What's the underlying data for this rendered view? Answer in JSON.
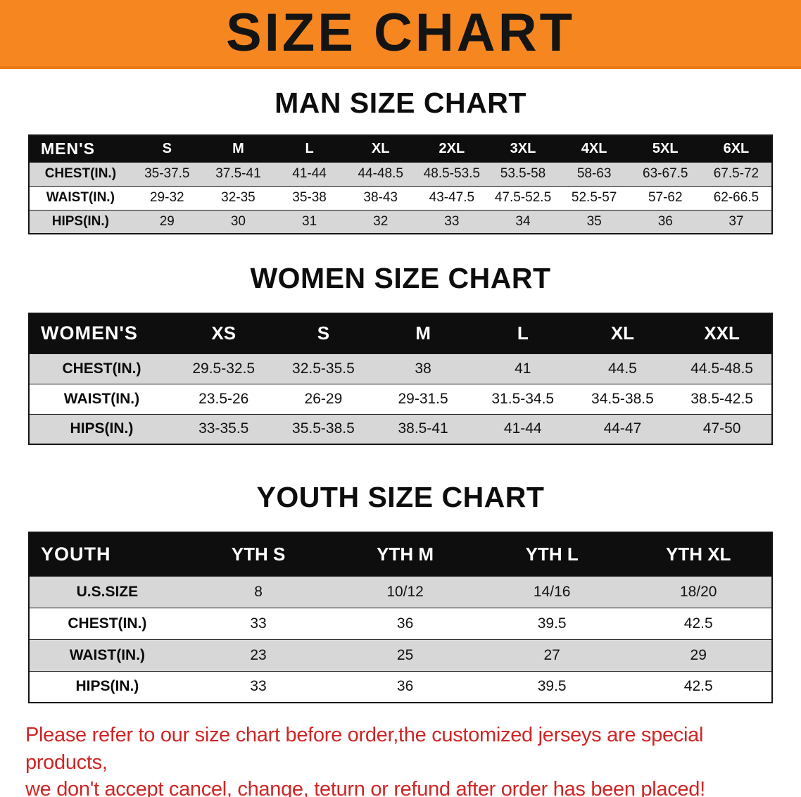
{
  "banner": {
    "title": "SIZE CHART",
    "bg_color": "#f6861f",
    "text_color": "#141414"
  },
  "sections": [
    {
      "id": "men",
      "heading": "MAN SIZE CHART",
      "table": {
        "corner_label": "MEN'S",
        "columns": [
          "S",
          "M",
          "L",
          "XL",
          "2XL",
          "3XL",
          "4XL",
          "5XL",
          "6XL"
        ],
        "rows": [
          {
            "label": "CHEST(IN.)",
            "values": [
              "35-37.5",
              "37.5-41",
              "41-44",
              "44-48.5",
              "48.5-53.5",
              "53.5-58",
              "58-63",
              "63-67.5",
              "67.5-72"
            ]
          },
          {
            "label": "WAIST(IN.)",
            "values": [
              "29-32",
              "32-35",
              "35-38",
              "38-43",
              "43-47.5",
              "47.5-52.5",
              "52.5-57",
              "57-62",
              "62-66.5"
            ]
          },
          {
            "label": "HIPS(IN.)",
            "values": [
              "29",
              "30",
              "31",
              "32",
              "33",
              "34",
              "35",
              "36",
              "37"
            ]
          }
        ]
      }
    },
    {
      "id": "women",
      "heading": "WOMEN SIZE CHART",
      "table": {
        "corner_label": "WOMEN'S",
        "columns": [
          "XS",
          "S",
          "M",
          "L",
          "XL",
          "XXL"
        ],
        "rows": [
          {
            "label": "CHEST(IN.)",
            "values": [
              "29.5-32.5",
              "32.5-35.5",
              "38",
              "41",
              "44.5",
              "44.5-48.5"
            ]
          },
          {
            "label": "WAIST(IN.)",
            "values": [
              "23.5-26",
              "26-29",
              "29-31.5",
              "31.5-34.5",
              "34.5-38.5",
              "38.5-42.5"
            ]
          },
          {
            "label": "HIPS(IN.)",
            "values": [
              "33-35.5",
              "35.5-38.5",
              "38.5-41",
              "41-44",
              "44-47",
              "47-50"
            ]
          }
        ]
      }
    },
    {
      "id": "youth",
      "heading": "YOUTH SIZE CHART",
      "table": {
        "corner_label": "YOUTH",
        "columns": [
          "YTH S",
          "YTH M",
          "YTH L",
          "YTH XL"
        ],
        "rows": [
          {
            "label": "U.S.SIZE",
            "values": [
              "8",
              "10/12",
              "14/16",
              "18/20"
            ]
          },
          {
            "label": "CHEST(IN.)",
            "values": [
              "33",
              "36",
              "39.5",
              "42.5"
            ]
          },
          {
            "label": "WAIST(IN.)",
            "values": [
              "23",
              "25",
              "27",
              "29"
            ]
          },
          {
            "label": "HIPS(IN.)",
            "values": [
              "33",
              "36",
              "39.5",
              "42.5"
            ]
          }
        ]
      }
    }
  ],
  "footer": {
    "text_color": "#d02525",
    "lines": [
      "Please refer to our size chart before order,the customized jerseys are special products,",
      "we don't accept cancel, change, teturn or refund after order has been placed!"
    ]
  }
}
